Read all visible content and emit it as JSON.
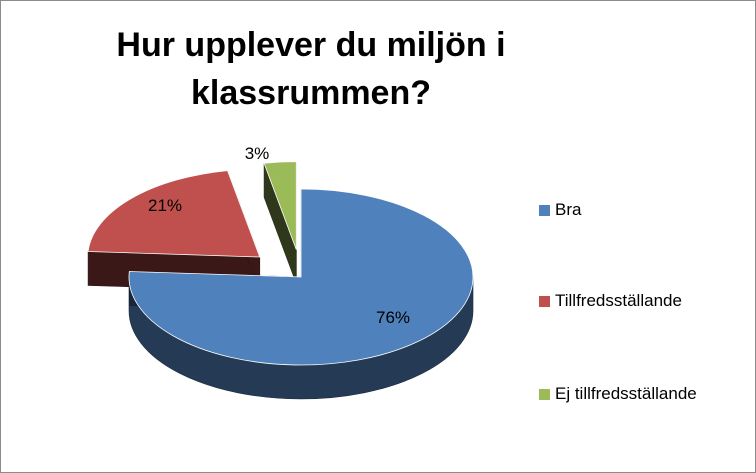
{
  "chart_data": {
    "type": "pie",
    "title": "Hur upplever du miljön i klassrummen?",
    "categories": [
      "Bra",
      "Tillfredsställande",
      "Ej tillfredsställande"
    ],
    "values": [
      76,
      21,
      3
    ],
    "labels": [
      "76%",
      "21%",
      "3%"
    ],
    "colors": [
      "#4f81bd",
      "#c0504d",
      "#9bbb59"
    ],
    "legend_position": "right",
    "exploded": true,
    "three_d": true
  }
}
